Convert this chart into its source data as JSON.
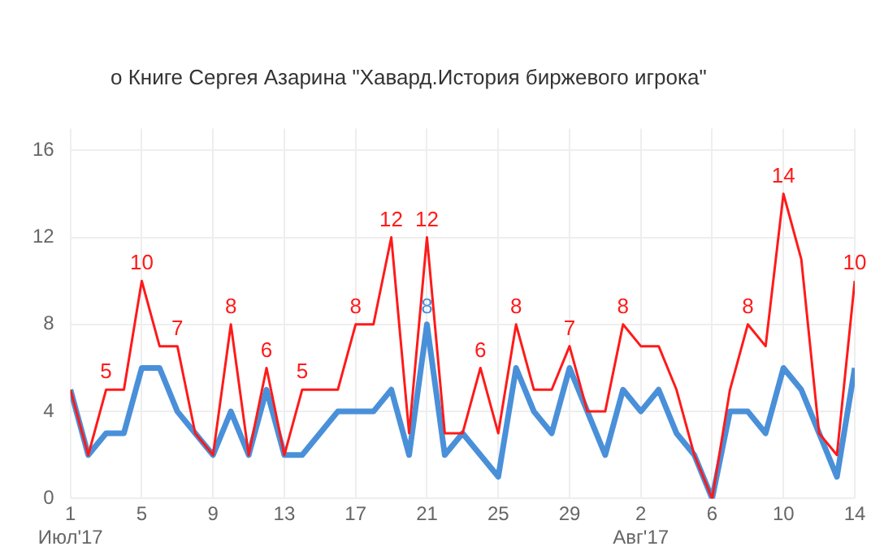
{
  "chart_data": {
    "type": "line",
    "title": "о Книге Сергея Азарина \"Хавард.История биржевого игрока\"",
    "x": [
      "2017-07-01",
      "2017-07-02",
      "2017-07-03",
      "2017-07-04",
      "2017-07-05",
      "2017-07-06",
      "2017-07-07",
      "2017-07-08",
      "2017-07-09",
      "2017-07-10",
      "2017-07-11",
      "2017-07-12",
      "2017-07-13",
      "2017-07-14",
      "2017-07-15",
      "2017-07-16",
      "2017-07-17",
      "2017-07-18",
      "2017-07-19",
      "2017-07-20",
      "2017-07-21",
      "2017-07-22",
      "2017-07-23",
      "2017-07-24",
      "2017-07-25",
      "2017-07-26",
      "2017-07-27",
      "2017-07-28",
      "2017-07-29",
      "2017-07-30",
      "2017-07-31",
      "2017-08-01",
      "2017-08-02",
      "2017-08-03",
      "2017-08-04",
      "2017-08-05",
      "2017-08-06",
      "2017-08-07",
      "2017-08-08",
      "2017-08-09",
      "2017-08-10",
      "2017-08-11",
      "2017-08-12",
      "2017-08-13",
      "2017-08-14"
    ],
    "series": [
      {
        "color": "#ff1a1a",
        "values": [
          5,
          2,
          5,
          5,
          10,
          7,
          7,
          3,
          2,
          8,
          2,
          6,
          2,
          5,
          5,
          5,
          8,
          8,
          12,
          3,
          12,
          3,
          3,
          6,
          3,
          8,
          5,
          5,
          7,
          4,
          4,
          8,
          7,
          7,
          5,
          2,
          0,
          5,
          8,
          7,
          14,
          11,
          3,
          2,
          10
        ],
        "value_labels": [
          null,
          null,
          "5",
          null,
          "10",
          null,
          "7",
          null,
          null,
          "8",
          null,
          "6",
          null,
          "5",
          null,
          null,
          "8",
          null,
          "12",
          null,
          "12",
          null,
          null,
          "6",
          null,
          "8",
          null,
          null,
          "7",
          null,
          null,
          "8",
          null,
          null,
          null,
          null,
          null,
          null,
          "8",
          null,
          "14",
          null,
          null,
          null,
          "10"
        ]
      },
      {
        "color": "#4a90d9",
        "values": [
          5,
          2,
          3,
          3,
          6,
          6,
          4,
          3,
          2,
          4,
          2,
          5,
          2,
          2,
          3,
          4,
          4,
          4,
          5,
          2,
          8,
          2,
          3,
          2,
          1,
          6,
          4,
          3,
          6,
          4,
          2,
          5,
          4,
          5,
          3,
          2,
          0,
          4,
          4,
          3,
          6,
          5,
          3,
          1,
          6
        ],
        "value_labels": [
          null,
          null,
          null,
          null,
          null,
          null,
          null,
          null,
          null,
          null,
          null,
          null,
          null,
          null,
          null,
          null,
          null,
          null,
          null,
          null,
          "8",
          null,
          null,
          null,
          null,
          null,
          null,
          null,
          null,
          null,
          null,
          null,
          null,
          null,
          null,
          null,
          null,
          null,
          null,
          null,
          null,
          null,
          null,
          null,
          null
        ]
      }
    ],
    "xlim": [
      "2017-07-01",
      "2017-08-14"
    ],
    "xticks": [
      {
        "value": "2017-07-01",
        "label": "1\nИюл'17"
      },
      {
        "value": "2017-07-05",
        "label": "5"
      },
      {
        "value": "2017-07-09",
        "label": "9"
      },
      {
        "value": "2017-07-13",
        "label": "13"
      },
      {
        "value": "2017-07-17",
        "label": "17"
      },
      {
        "value": "2017-07-21",
        "label": "21"
      },
      {
        "value": "2017-07-25",
        "label": "25"
      },
      {
        "value": "2017-07-29",
        "label": "29"
      },
      {
        "value": "2017-08-02",
        "label": "2\nАвг'17"
      },
      {
        "value": "2017-08-06",
        "label": "6"
      },
      {
        "value": "2017-08-10",
        "label": "10"
      },
      {
        "value": "2017-08-14",
        "label": "14"
      }
    ],
    "ylim": [
      0,
      17
    ],
    "yticks": [
      0,
      4,
      8,
      12,
      16
    ],
    "grid": true,
    "legend": false,
    "marker": "none",
    "line_style": "solid"
  }
}
